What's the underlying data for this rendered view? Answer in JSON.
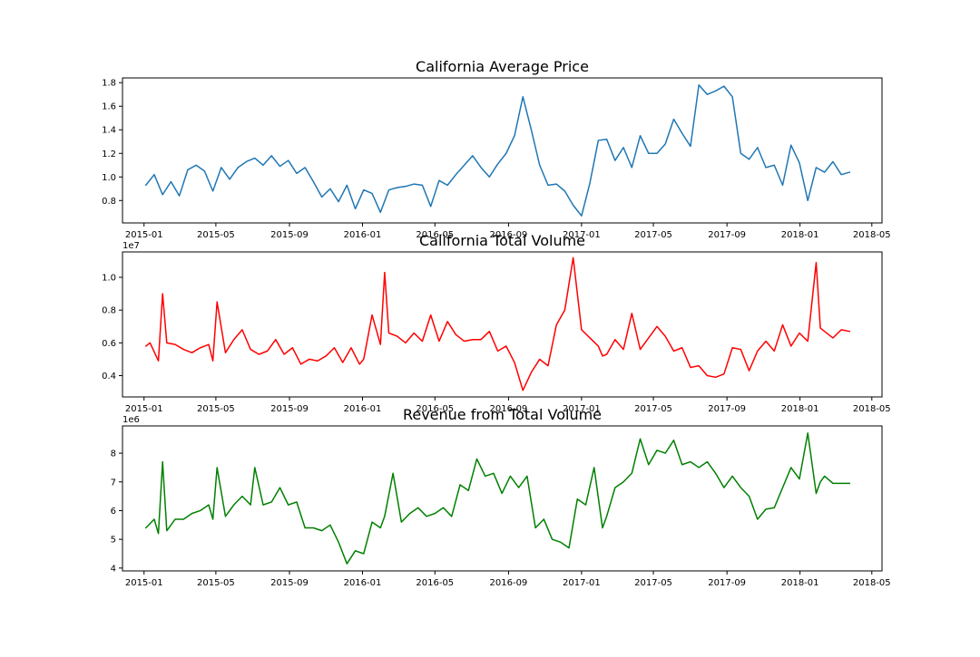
{
  "chart_data": [
    {
      "type": "line",
      "title": "California Average Price",
      "xlabel": "",
      "ylabel": "",
      "x_tick_labels": [
        "2015-01",
        "2015-05",
        "2015-09",
        "2016-01",
        "2016-05",
        "2016-09",
        "2017-01",
        "2017-05",
        "2017-09",
        "2018-01",
        "2018-05"
      ],
      "y_tick_labels": [
        "0.8",
        "1.0",
        "1.2",
        "1.4",
        "1.6",
        "1.8"
      ],
      "y_ticks": [
        0.8,
        1.0,
        1.2,
        1.4,
        1.6,
        1.8
      ],
      "ylim": [
        0.61,
        1.84
      ],
      "xlim": [
        "2014-11-26",
        "2018-05-18"
      ],
      "offset_label": "",
      "color": "#1f77b4",
      "series": [
        {
          "x": [
            "2015-01-04",
            "2015-01-18",
            "2015-02-01",
            "2015-02-15",
            "2015-03-01",
            "2015-03-15",
            "2015-03-29",
            "2015-04-12",
            "2015-04-26",
            "2015-05-10",
            "2015-05-24",
            "2015-06-07",
            "2015-06-21",
            "2015-07-05",
            "2015-07-19",
            "2015-08-02",
            "2015-08-16",
            "2015-08-30",
            "2015-09-13",
            "2015-09-27",
            "2015-10-11",
            "2015-10-25",
            "2015-11-08",
            "2015-11-22",
            "2015-12-06",
            "2015-12-20",
            "2016-01-03",
            "2016-01-17",
            "2016-01-31",
            "2016-02-14",
            "2016-02-28",
            "2016-03-13",
            "2016-03-27",
            "2016-04-10",
            "2016-04-24",
            "2016-05-08",
            "2016-05-22",
            "2016-06-05",
            "2016-06-19",
            "2016-07-03",
            "2016-07-17",
            "2016-07-31",
            "2016-08-14",
            "2016-08-28",
            "2016-09-11",
            "2016-09-25",
            "2016-10-09",
            "2016-10-23",
            "2016-11-06",
            "2016-11-20",
            "2016-12-04",
            "2016-12-18",
            "2017-01-01",
            "2017-01-15",
            "2017-01-29",
            "2017-02-12",
            "2017-02-26",
            "2017-03-12",
            "2017-03-26",
            "2017-04-09",
            "2017-04-23",
            "2017-05-07",
            "2017-05-21",
            "2017-06-04",
            "2017-06-18",
            "2017-07-02",
            "2017-07-16",
            "2017-07-30",
            "2017-08-13",
            "2017-08-27",
            "2017-09-10",
            "2017-09-24",
            "2017-10-08",
            "2017-10-22",
            "2017-11-05",
            "2017-11-19",
            "2017-12-03",
            "2017-12-17",
            "2017-12-31",
            "2018-01-14",
            "2018-01-28",
            "2018-02-11",
            "2018-02-25",
            "2018-03-11",
            "2018-03-25"
          ],
          "y": [
            0.93,
            1.02,
            0.85,
            0.96,
            0.84,
            1.06,
            1.1,
            1.05,
            0.88,
            1.08,
            0.98,
            1.08,
            1.13,
            1.16,
            1.1,
            1.18,
            1.09,
            1.14,
            1.03,
            1.08,
            0.96,
            0.83,
            0.9,
            0.79,
            0.93,
            0.73,
            0.89,
            0.86,
            0.7,
            0.89,
            0.91,
            0.92,
            0.94,
            0.93,
            0.75,
            0.97,
            0.93,
            1.02,
            1.1,
            1.18,
            1.08,
            1.0,
            1.11,
            1.2,
            1.35,
            1.68,
            1.4,
            1.1,
            0.93,
            0.94,
            0.88,
            0.76,
            0.67,
            0.95,
            1.31,
            1.32,
            1.14,
            1.25,
            1.08,
            1.35,
            1.2,
            1.2,
            1.28,
            1.49,
            1.37,
            1.26,
            1.78,
            1.7,
            1.73,
            1.77,
            1.68,
            1.2,
            1.15,
            1.25,
            1.08,
            1.1,
            0.93,
            1.27,
            1.12,
            0.8,
            1.08,
            1.04,
            1.13,
            1.02,
            1.04
          ]
        }
      ]
    },
    {
      "type": "line",
      "title": "California Total Volume",
      "xlabel": "",
      "ylabel": "",
      "x_tick_labels": [
        "2015-01",
        "2015-05",
        "2015-09",
        "2016-01",
        "2016-05",
        "2016-09",
        "2017-01",
        "2017-05",
        "2017-09",
        "2018-01",
        "2018-05"
      ],
      "y_tick_labels": [
        "0.4",
        "0.6",
        "0.8",
        "1.0"
      ],
      "y_ticks": [
        0.4,
        0.6,
        0.8,
        1.0
      ],
      "ylim": [
        0.27,
        1.155
      ],
      "xlim": [
        "2014-11-26",
        "2018-05-18"
      ],
      "offset_label": "1e7",
      "color": "#ff0000",
      "series": [
        {
          "x": [
            "2015-01-04",
            "2015-01-11",
            "2015-01-25",
            "2015-02-01",
            "2015-02-08",
            "2015-02-22",
            "2015-03-08",
            "2015-03-22",
            "2015-04-05",
            "2015-04-19",
            "2015-04-26",
            "2015-05-03",
            "2015-05-17",
            "2015-05-31",
            "2015-06-14",
            "2015-06-28",
            "2015-07-12",
            "2015-07-26",
            "2015-08-09",
            "2015-08-23",
            "2015-09-06",
            "2015-09-20",
            "2015-10-04",
            "2015-10-18",
            "2015-11-01",
            "2015-11-15",
            "2015-11-29",
            "2015-12-13",
            "2015-12-27",
            "2016-01-03",
            "2016-01-17",
            "2016-01-31",
            "2016-02-07",
            "2016-02-14",
            "2016-02-28",
            "2016-03-13",
            "2016-03-27",
            "2016-04-10",
            "2016-04-24",
            "2016-05-08",
            "2016-05-22",
            "2016-06-05",
            "2016-06-19",
            "2016-07-03",
            "2016-07-17",
            "2016-07-31",
            "2016-08-14",
            "2016-08-28",
            "2016-09-11",
            "2016-09-25",
            "2016-10-09",
            "2016-10-23",
            "2016-11-06",
            "2016-11-20",
            "2016-12-04",
            "2016-12-18",
            "2017-01-01",
            "2017-01-15",
            "2017-01-29",
            "2017-02-05",
            "2017-02-12",
            "2017-02-26",
            "2017-03-12",
            "2017-03-26",
            "2017-04-09",
            "2017-04-23",
            "2017-05-07",
            "2017-05-21",
            "2017-06-04",
            "2017-06-18",
            "2017-07-02",
            "2017-07-16",
            "2017-07-30",
            "2017-08-13",
            "2017-08-27",
            "2017-09-10",
            "2017-09-24",
            "2017-10-08",
            "2017-10-22",
            "2017-11-05",
            "2017-11-19",
            "2017-12-03",
            "2017-12-17",
            "2017-12-31",
            "2018-01-14",
            "2018-01-28",
            "2018-02-04",
            "2018-02-11",
            "2018-02-25",
            "2018-03-11",
            "2018-03-25"
          ],
          "y": [
            0.58,
            0.6,
            0.49,
            0.9,
            0.6,
            0.59,
            0.56,
            0.54,
            0.57,
            0.59,
            0.49,
            0.85,
            0.54,
            0.62,
            0.68,
            0.56,
            0.53,
            0.55,
            0.62,
            0.53,
            0.57,
            0.47,
            0.5,
            0.49,
            0.52,
            0.57,
            0.48,
            0.57,
            0.47,
            0.5,
            0.77,
            0.59,
            1.03,
            0.66,
            0.64,
            0.6,
            0.66,
            0.61,
            0.77,
            0.61,
            0.73,
            0.65,
            0.61,
            0.62,
            0.62,
            0.67,
            0.55,
            0.58,
            0.48,
            0.31,
            0.42,
            0.5,
            0.46,
            0.71,
            0.8,
            1.12,
            0.68,
            0.63,
            0.58,
            0.52,
            0.53,
            0.62,
            0.56,
            0.78,
            0.56,
            0.63,
            0.7,
            0.64,
            0.55,
            0.57,
            0.45,
            0.46,
            0.4,
            0.39,
            0.41,
            0.57,
            0.56,
            0.43,
            0.55,
            0.61,
            0.55,
            0.71,
            0.58,
            0.66,
            0.61,
            1.09,
            0.69,
            0.67,
            0.63,
            0.68,
            0.67
          ]
        }
      ]
    },
    {
      "type": "line",
      "title": "Revenue from Total Volume",
      "xlabel": "",
      "ylabel": "",
      "x_tick_labels": [
        "2015-01",
        "2015-05",
        "2015-09",
        "2016-01",
        "2016-05",
        "2016-09",
        "2017-01",
        "2017-05",
        "2017-09",
        "2018-01",
        "2018-05"
      ],
      "y_tick_labels": [
        "4",
        "5",
        "6",
        "7",
        "8"
      ],
      "y_ticks": [
        4,
        5,
        6,
        7,
        8
      ],
      "ylim": [
        3.9,
        8.95
      ],
      "xlim": [
        "2014-11-26",
        "2018-05-18"
      ],
      "offset_label": "1e6",
      "color": "#008000",
      "series": [
        {
          "x": [
            "2015-01-04",
            "2015-01-18",
            "2015-01-25",
            "2015-02-01",
            "2015-02-08",
            "2015-02-22",
            "2015-03-08",
            "2015-03-22",
            "2015-04-05",
            "2015-04-19",
            "2015-04-26",
            "2015-05-03",
            "2015-05-17",
            "2015-05-31",
            "2015-06-14",
            "2015-06-28",
            "2015-07-05",
            "2015-07-19",
            "2015-08-02",
            "2015-08-16",
            "2015-08-30",
            "2015-09-13",
            "2015-09-27",
            "2015-10-11",
            "2015-10-25",
            "2015-11-08",
            "2015-11-22",
            "2015-12-06",
            "2015-12-20",
            "2016-01-03",
            "2016-01-17",
            "2016-01-31",
            "2016-02-07",
            "2016-02-21",
            "2016-03-06",
            "2016-03-20",
            "2016-04-03",
            "2016-04-17",
            "2016-05-01",
            "2016-05-15",
            "2016-05-29",
            "2016-06-12",
            "2016-06-26",
            "2016-07-10",
            "2016-07-24",
            "2016-08-07",
            "2016-08-21",
            "2016-09-04",
            "2016-09-18",
            "2016-10-02",
            "2016-10-16",
            "2016-10-30",
            "2016-11-13",
            "2016-11-27",
            "2016-12-11",
            "2016-12-25",
            "2017-01-08",
            "2017-01-22",
            "2017-02-05",
            "2017-02-12",
            "2017-02-26",
            "2017-03-12",
            "2017-03-26",
            "2017-04-09",
            "2017-04-23",
            "2017-05-07",
            "2017-05-21",
            "2017-06-04",
            "2017-06-18",
            "2017-07-02",
            "2017-07-16",
            "2017-07-30",
            "2017-08-13",
            "2017-08-27",
            "2017-09-10",
            "2017-09-24",
            "2017-10-08",
            "2017-10-22",
            "2017-11-05",
            "2017-11-19",
            "2017-12-03",
            "2017-12-17",
            "2017-12-31",
            "2018-01-14",
            "2018-01-28",
            "2018-02-04",
            "2018-02-11",
            "2018-02-25",
            "2018-03-11",
            "2018-03-25"
          ],
          "y": [
            5.4,
            5.7,
            5.2,
            7.7,
            5.3,
            5.7,
            5.7,
            5.9,
            6.0,
            6.2,
            5.7,
            7.5,
            5.8,
            6.2,
            6.5,
            6.2,
            7.5,
            6.2,
            6.3,
            6.8,
            6.2,
            6.3,
            5.4,
            5.4,
            5.3,
            5.5,
            4.9,
            4.15,
            4.6,
            4.5,
            5.6,
            5.4,
            5.8,
            7.3,
            5.6,
            5.9,
            6.1,
            5.8,
            5.9,
            6.1,
            5.8,
            6.9,
            6.7,
            7.8,
            7.2,
            7.3,
            6.6,
            7.2,
            6.8,
            7.2,
            5.4,
            5.7,
            5.0,
            4.9,
            4.7,
            6.4,
            6.2,
            7.5,
            5.4,
            5.8,
            6.8,
            7.0,
            7.3,
            8.5,
            7.6,
            8.1,
            8.0,
            8.45,
            7.6,
            7.7,
            7.5,
            7.7,
            7.3,
            6.8,
            7.2,
            6.8,
            6.5,
            5.7,
            6.05,
            6.1,
            6.8,
            7.5,
            7.1,
            8.7,
            6.6,
            7.0,
            7.2,
            6.95,
            6.95,
            6.95
          ]
        }
      ]
    }
  ]
}
